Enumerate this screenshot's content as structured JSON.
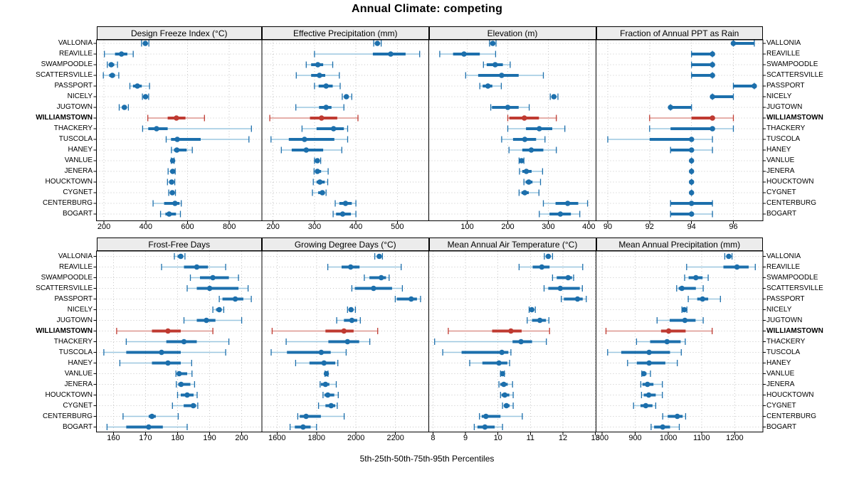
{
  "chart_data": {
    "type": "dotplot",
    "title": "Annual Climate: competing",
    "caption": "5th-25th-50th-75th-95th Percentiles",
    "percentiles": [
      5,
      25,
      50,
      75,
      95
    ],
    "highlight": "WILLIAMSTOWN",
    "legend_position": "none",
    "grid": "dotted",
    "colors": {
      "blue": "#1c6fac",
      "blue_light": "#9cc7e0",
      "red": "#bf3a31",
      "red_light": "#dd958e",
      "strip_bg": "#ececec",
      "grid": "#c6c6c6",
      "border": "#000000"
    },
    "locations": [
      "VALLONIA",
      "REAVILLE",
      "SWAMPOODLE",
      "SCATTERSVILLE",
      "PASSPORT",
      "NICELY",
      "JUGTOWN",
      "WILLIAMSTOWN",
      "THACKERY",
      "TUSCOLA",
      "HANEY",
      "VANLUE",
      "JENERA",
      "HOUCKTOWN",
      "CYGNET",
      "CENTERBURG",
      "BOGART"
    ],
    "panels": [
      {
        "title": "Design Freeze Index (°C)",
        "grid_pos": {
          "row": 0,
          "col": 0
        },
        "ticks": [
          200,
          400,
          600,
          800
        ],
        "xlim": [
          164,
          956
        ],
        "values": [
          [
            380,
            393,
            398,
            405,
            415
          ],
          [
            202,
            253,
            284,
            312,
            340
          ],
          [
            216,
            224,
            235,
            249,
            265
          ],
          [
            197,
            225,
            240,
            253,
            271
          ],
          [
            324,
            339,
            360,
            381,
            418
          ],
          [
            384,
            392,
            399,
            407,
            414
          ],
          [
            273,
            286,
            298,
            308,
            317
          ],
          [
            410,
            505,
            547,
            590,
            681
          ],
          [
            385,
            412,
            452,
            505,
            906
          ],
          [
            498,
            521,
            551,
            663,
            894
          ],
          [
            523,
            535,
            549,
            596,
            623
          ],
          [
            522,
            526,
            529,
            532,
            536
          ],
          [
            507,
            519,
            529,
            536,
            541
          ],
          [
            504,
            514,
            524,
            534,
            539
          ],
          [
            510,
            519,
            527,
            534,
            542
          ],
          [
            435,
            488,
            540,
            562,
            570
          ],
          [
            471,
            494,
            512,
            545,
            566
          ]
        ]
      },
      {
        "title": "Effective Precipitation (mm)",
        "grid_pos": {
          "row": 0,
          "col": 1
        },
        "ticks": [
          200,
          300,
          400,
          500
        ],
        "xlim": [
          173,
          576
        ],
        "values": [
          [
            443,
            448,
            452,
            456,
            461
          ],
          [
            300,
            441,
            484,
            520,
            554
          ],
          [
            280,
            292,
            308,
            321,
            344
          ],
          [
            256,
            292,
            312,
            326,
            360
          ],
          [
            300,
            310,
            328,
            344,
            362
          ],
          [
            367,
            373,
            377,
            382,
            390
          ],
          [
            255,
            311,
            328,
            341,
            371
          ],
          [
            192,
            289,
            317,
            355,
            405
          ],
          [
            270,
            305,
            346,
            371,
            380
          ],
          [
            195,
            238,
            276,
            348,
            380
          ],
          [
            220,
            245,
            280,
            321,
            366
          ],
          [
            300,
            303,
            307,
            311,
            315
          ],
          [
            299,
            303,
            307,
            316,
            333
          ],
          [
            297,
            305,
            313,
            325,
            332
          ],
          [
            295,
            309,
            319,
            324,
            328
          ],
          [
            350,
            360,
            375,
            390,
            400
          ],
          [
            345,
            352,
            368,
            388,
            400
          ]
        ]
      },
      {
        "title": "Elevation (m)",
        "grid_pos": {
          "row": 0,
          "col": 2
        },
        "ticks": [
          100,
          200,
          300,
          400
        ],
        "xlim": [
          5,
          418
        ],
        "values": [
          [
            155,
            160,
            163,
            167,
            171
          ],
          [
            32,
            65,
            92,
            131,
            170
          ],
          [
            140,
            148,
            169,
            188,
            206
          ],
          [
            96,
            127,
            185,
            227,
            288
          ],
          [
            131,
            138,
            151,
            162,
            184
          ],
          [
            305,
            310,
            314,
            319,
            324
          ],
          [
            158,
            161,
            200,
            227,
            253
          ],
          [
            200,
            204,
            241,
            277,
            320
          ],
          [
            200,
            245,
            278,
            310,
            341
          ],
          [
            185,
            213,
            242,
            270,
            292
          ],
          [
            203,
            236,
            258,
            288,
            320
          ],
          [
            228,
            231,
            234,
            237,
            240
          ],
          [
            229,
            236,
            246,
            259,
            286
          ],
          [
            240,
            244,
            252,
            261,
            281
          ],
          [
            228,
            234,
            242,
            252,
            277
          ],
          [
            288,
            318,
            348,
            374,
            397
          ],
          [
            278,
            303,
            330,
            356,
            378
          ]
        ]
      },
      {
        "title": "Fraction of Annual PPT as Rain",
        "grid_pos": {
          "row": 0,
          "col": 3
        },
        "ticks": [
          90,
          92,
          94,
          96
        ],
        "xlim": [
          89.44,
          97.41
        ],
        "values": [
          [
            96,
            96,
            96,
            97,
            97
          ],
          [
            94,
            94,
            95,
            95,
            95
          ],
          [
            94,
            94,
            95,
            95,
            95
          ],
          [
            94,
            94,
            95,
            95,
            95
          ],
          [
            96,
            96,
            97,
            97,
            97
          ],
          [
            95,
            95,
            95,
            96,
            96
          ],
          [
            93,
            93,
            93,
            94,
            94
          ],
          [
            92,
            94,
            95,
            95,
            96
          ],
          [
            92,
            93,
            95,
            95,
            96
          ],
          [
            90,
            92,
            94,
            94,
            95
          ],
          [
            93,
            93,
            94,
            94,
            95
          ],
          [
            94,
            94,
            94,
            94,
            94
          ],
          [
            94,
            94,
            94,
            94,
            94
          ],
          [
            94,
            94,
            94,
            94,
            94
          ],
          [
            94,
            94,
            94,
            94,
            94
          ],
          [
            93,
            93,
            94,
            95,
            95
          ],
          [
            93,
            93,
            94,
            94,
            95
          ]
        ]
      },
      {
        "title": "Frost-Free Days",
        "grid_pos": {
          "row": 1,
          "col": 0
        },
        "ticks": [
          160,
          170,
          180,
          190,
          200
        ],
        "xlim": [
          154.7,
          206.3
        ],
        "values": [
          [
            179,
            180,
            181,
            181.5,
            182.3
          ],
          [
            175,
            182,
            186,
            189.5,
            195
          ],
          [
            184,
            187,
            191,
            196,
            199
          ],
          [
            183,
            186,
            190,
            199,
            202
          ],
          [
            193,
            194,
            198,
            200.5,
            203
          ],
          [
            191,
            192,
            193,
            193.7,
            194.4
          ],
          [
            182,
            186,
            189,
            191.8,
            200
          ],
          [
            161,
            172,
            177,
            181,
            191
          ],
          [
            164,
            176.5,
            182,
            186,
            196
          ],
          [
            157,
            164,
            175,
            181,
            195
          ],
          [
            162,
            172,
            177,
            181,
            184.4
          ],
          [
            179.5,
            180,
            180.5,
            183,
            184.5
          ],
          [
            179.6,
            180.2,
            181.1,
            184,
            185.3
          ],
          [
            180,
            181,
            183,
            185,
            186.1
          ],
          [
            178.4,
            181.9,
            184.9,
            185.8,
            186.3
          ],
          [
            163,
            171,
            172,
            173.2,
            180.2
          ],
          [
            158,
            164,
            171,
            175.4,
            183
          ]
        ]
      },
      {
        "title": "Growing Degree Days (°C)",
        "grid_pos": {
          "row": 1,
          "col": 1
        },
        "ticks": [
          1600,
          1800,
          2000,
          2200
        ],
        "xlim": [
          1523,
          2369
        ],
        "values": [
          [
            2095,
            2108,
            2118,
            2126,
            2134
          ],
          [
            1857,
            1927,
            1973,
            2018,
            2229
          ],
          [
            2042,
            2068,
            2128,
            2152,
            2168
          ],
          [
            1979,
            1994,
            2089,
            2183,
            2235
          ],
          [
            2199,
            2207,
            2280,
            2309,
            2327
          ],
          [
            1957,
            1966,
            1975,
            1986,
            1997
          ],
          [
            1902,
            1939,
            1979,
            2006,
            2022
          ],
          [
            1575,
            1845,
            1939,
            1988,
            2110
          ],
          [
            1646,
            1860,
            1957,
            2016,
            2070
          ],
          [
            1570,
            1650,
            1824,
            1872,
            1950
          ],
          [
            1694,
            1764,
            1838,
            1895,
            1908
          ],
          [
            1843,
            1847,
            1850,
            1854,
            1858
          ],
          [
            1818,
            1822,
            1845,
            1865,
            1900
          ],
          [
            1833,
            1840,
            1857,
            1890,
            1910
          ],
          [
            1810,
            1845,
            1874,
            1895,
            1905
          ],
          [
            1705,
            1715,
            1747,
            1822,
            1940
          ],
          [
            1666,
            1690,
            1732,
            1770,
            1800
          ]
        ]
      },
      {
        "title": "Mean Annual Air Temperature (°C)",
        "grid_pos": {
          "row": 1,
          "col": 2
        },
        "ticks": [
          8,
          9,
          10,
          11,
          12,
          13
        ],
        "xlim": [
          7.87,
          13.02
        ],
        "values": [
          [
            11.43,
            11.5,
            11.55,
            11.62,
            11.68
          ],
          [
            10.65,
            11.07,
            11.35,
            11.59,
            12.61
          ],
          [
            11.68,
            11.81,
            12.16,
            12.28,
            12.33
          ],
          [
            11.42,
            11.55,
            11.92,
            12.52,
            12.6
          ],
          [
            11.95,
            12.03,
            12.45,
            12.61,
            12.72
          ],
          [
            10.96,
            11.0,
            11.04,
            11.1,
            11.15
          ],
          [
            10.9,
            11.05,
            11.29,
            11.48,
            11.57
          ],
          [
            8.47,
            9.82,
            10.4,
            10.73,
            11.59
          ],
          [
            8.05,
            10.45,
            10.71,
            11.05,
            11.49
          ],
          [
            8.3,
            8.88,
            10.12,
            10.32,
            10.4
          ],
          [
            9.13,
            9.52,
            10.03,
            10.29,
            10.36
          ],
          [
            10.08,
            10.11,
            10.14,
            10.17,
            10.2
          ],
          [
            10.03,
            10.07,
            10.18,
            10.3,
            10.45
          ],
          [
            10.08,
            10.11,
            10.21,
            10.35,
            10.47
          ],
          [
            10.14,
            10.18,
            10.26,
            10.36,
            10.47
          ],
          [
            9.43,
            9.5,
            9.63,
            10.08,
            10.75
          ],
          [
            9.27,
            9.37,
            9.6,
            9.9,
            10.14
          ]
        ]
      },
      {
        "title": "Mean Annual Precipitation (mm)",
        "grid_pos": {
          "row": 1,
          "col": 3
        },
        "ticks": [
          800,
          900,
          1000,
          1100,
          1200
        ],
        "xlim": [
          782,
          1285
        ],
        "values": [
          [
            1170,
            1176,
            1182,
            1187,
            1192
          ],
          [
            1055,
            1166,
            1207,
            1242,
            1262
          ],
          [
            1049,
            1061,
            1083,
            1103,
            1120
          ],
          [
            1025,
            1031,
            1041,
            1083,
            1105
          ],
          [
            1060,
            1087,
            1103,
            1120,
            1157
          ],
          [
            1041,
            1045,
            1048,
            1052,
            1056
          ],
          [
            966,
            1004,
            1050,
            1082,
            1105
          ],
          [
            812,
            978,
            1001,
            1052,
            1132
          ],
          [
            904,
            945,
            996,
            1037,
            1051
          ],
          [
            817,
            858,
            942,
            1005,
            1039
          ],
          [
            877,
            905,
            942,
            991,
            1027
          ],
          [
            920,
            923,
            926,
            934,
            946
          ],
          [
            917,
            922,
            937,
            955,
            982
          ],
          [
            919,
            926,
            941,
            962,
            982
          ],
          [
            895,
            916,
            932,
            952,
            962
          ],
          [
            983,
            998,
            1027,
            1043,
            1052
          ],
          [
            948,
            957,
            983,
            1005,
            1033
          ]
        ]
      }
    ]
  }
}
